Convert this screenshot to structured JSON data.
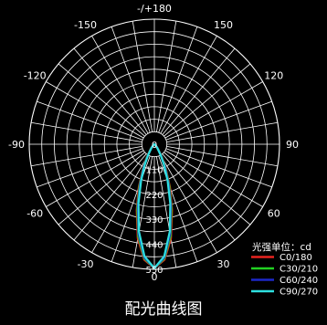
{
  "chart_data": {
    "type": "polar",
    "title": "配光曲线图",
    "legend_title": "光强单位：cd",
    "legend_position": "bottom-right",
    "grid": true,
    "angle_step_deg": 10,
    "angle_labels": [
      "-/+180",
      "150",
      "120",
      "90",
      "60",
      "30",
      "0",
      "-30",
      "-60",
      "-90",
      "-120",
      "-150"
    ],
    "radial_ticks": [
      "0",
      "110",
      "220",
      "330",
      "440",
      "550"
    ],
    "radial_max": 550,
    "angles": [
      -60,
      -50,
      -40,
      -30,
      -25,
      -20,
      -15,
      -10,
      -5,
      0,
      5,
      10,
      15,
      20,
      25,
      30,
      40,
      50,
      60
    ],
    "series": [
      {
        "name": "C0/180",
        "color": "#e8231f",
        "values": [
          0,
          5,
          25,
          70,
          120,
          200,
          300,
          420,
          510,
          545,
          510,
          420,
          300,
          200,
          120,
          70,
          25,
          5,
          0
        ]
      },
      {
        "name": "C30/210",
        "color": "#22d122",
        "values": [
          0,
          5,
          22,
          65,
          115,
          190,
          290,
          410,
          505,
          545,
          505,
          410,
          290,
          190,
          115,
          65,
          22,
          5,
          0
        ]
      },
      {
        "name": "C60/240",
        "color": "#1c28c8",
        "values": [
          0,
          5,
          20,
          60,
          110,
          180,
          280,
          400,
          500,
          545,
          500,
          400,
          280,
          180,
          110,
          60,
          20,
          5,
          0
        ]
      },
      {
        "name": "C90/270",
        "color": "#2ee0e0",
        "values": [
          0,
          5,
          18,
          55,
          100,
          170,
          270,
          390,
          495,
          545,
          495,
          390,
          270,
          170,
          100,
          55,
          18,
          5,
          0
        ]
      }
    ]
  }
}
